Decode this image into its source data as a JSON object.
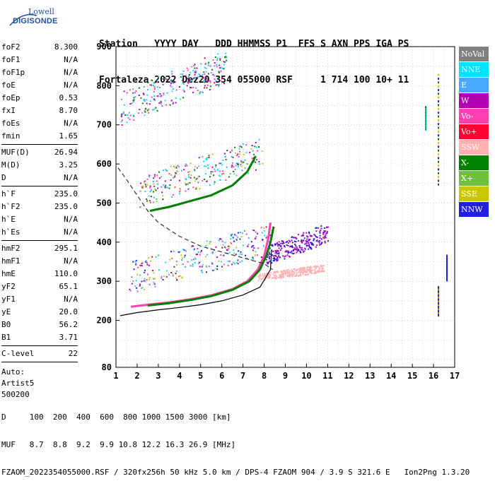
{
  "logo": {
    "line1": "Lowell",
    "line2": "DIGISONDE"
  },
  "header": {
    "labels": "Station   YYYY DAY   DDD HHMMSS P1  FFS S AXN PPS IGA PS",
    "values": "Fortaleza 2022 Dez20 354 055000 RSF     1 714 100 10+ 11"
  },
  "params": {
    "group1": [
      {
        "name": "foF2",
        "value": "8.300"
      },
      {
        "name": "foF1",
        "value": "N/A"
      },
      {
        "name": "foF1p",
        "value": "N/A"
      },
      {
        "name": "foE",
        "value": "N/A"
      },
      {
        "name": "foEp",
        "value": "0.53"
      },
      {
        "name": "fxI",
        "value": "8.70"
      },
      {
        "name": "foEs",
        "value": "N/A"
      },
      {
        "name": "fmin",
        "value": "1.65"
      }
    ],
    "group2": [
      {
        "name": "MUF(D)",
        "value": "26.94"
      },
      {
        "name": "M(D)",
        "value": "3.25"
      },
      {
        "name": "D",
        "value": "N/A"
      }
    ],
    "group3": [
      {
        "name": "h`F",
        "value": "235.0"
      },
      {
        "name": "h`F2",
        "value": "235.0"
      },
      {
        "name": "h`E",
        "value": "N/A"
      },
      {
        "name": "h`Es",
        "value": "N/A"
      }
    ],
    "group4": [
      {
        "name": "hmF2",
        "value": "295.1"
      },
      {
        "name": "hmF1",
        "value": "N/A"
      },
      {
        "name": "hmE",
        "value": "110.0"
      },
      {
        "name": "yF2",
        "value": "65.1"
      },
      {
        "name": "yF1",
        "value": "N/A"
      },
      {
        "name": "yE",
        "value": "20.0"
      },
      {
        "name": "B0",
        "value": "56.2"
      },
      {
        "name": "B1",
        "value": "3.71"
      }
    ],
    "group5": [
      {
        "name": "C-level",
        "value": "22"
      }
    ],
    "auto": [
      "Auto:",
      "Artist5",
      "500200"
    ]
  },
  "legend": [
    {
      "label": "NoVal",
      "color": "#808080"
    },
    {
      "label": "NNE",
      "color": "#00e5ff"
    },
    {
      "label": "E",
      "color": "#4aa8ff"
    },
    {
      "label": "W",
      "color": "#b400b4"
    },
    {
      "label": "Vo-",
      "color": "#ff40b0"
    },
    {
      "label": "Vo+",
      "color": "#ff0030"
    },
    {
      "label": "SSW",
      "color": "#ffb0b0"
    },
    {
      "label": "X-",
      "color": "#008000"
    },
    {
      "label": "X+",
      "color": "#70c040"
    },
    {
      "label": "SSE",
      "color": "#c8c800"
    },
    {
      "label": "NNW",
      "color": "#2020e0"
    }
  ],
  "chart_data": {
    "type": "scatter",
    "title": "",
    "xlabel": "",
    "ylabel": "",
    "xlim": [
      1,
      17
    ],
    "ylim": [
      80,
      900
    ],
    "x_ticks": [
      1,
      2,
      3,
      4,
      5,
      6,
      7,
      8,
      9,
      10,
      11,
      12,
      13,
      14,
      15,
      16,
      17
    ],
    "y_ticks": [
      80,
      200,
      300,
      400,
      500,
      600,
      700,
      800,
      900
    ],
    "grid": true,
    "traces": [
      {
        "name": "O-mode trace",
        "color": "#ff40b0",
        "points": [
          [
            1.7,
            235
          ],
          [
            2.5,
            240
          ],
          [
            3.5,
            246
          ],
          [
            4.5,
            254
          ],
          [
            5.5,
            264
          ],
          [
            6.5,
            280
          ],
          [
            7.2,
            300
          ],
          [
            7.7,
            330
          ],
          [
            8.0,
            365
          ],
          [
            8.2,
            410
          ],
          [
            8.3,
            450
          ]
        ]
      },
      {
        "name": "X-mode trace",
        "color": "#008000",
        "points": [
          [
            2.5,
            238
          ],
          [
            3.5,
            244
          ],
          [
            4.5,
            252
          ],
          [
            5.5,
            262
          ],
          [
            6.5,
            278
          ],
          [
            7.3,
            300
          ],
          [
            7.8,
            330
          ],
          [
            8.1,
            365
          ],
          [
            8.3,
            400
          ],
          [
            8.45,
            440
          ]
        ]
      },
      {
        "name": "multiple reflection 2",
        "color": "#008000",
        "points": [
          [
            2.6,
            480
          ],
          [
            3.5,
            490
          ],
          [
            4.5,
            505
          ],
          [
            5.5,
            520
          ],
          [
            6.5,
            545
          ],
          [
            7.2,
            580
          ],
          [
            7.6,
            620
          ]
        ]
      },
      {
        "name": "profile solid",
        "color": "#000000",
        "points": [
          [
            1.2,
            212
          ],
          [
            2,
            220
          ],
          [
            3,
            227
          ],
          [
            4,
            233
          ],
          [
            5,
            240
          ],
          [
            6,
            250
          ],
          [
            7,
            265
          ],
          [
            7.8,
            285
          ],
          [
            8.3,
            330
          ],
          [
            8.35,
            380
          ]
        ]
      },
      {
        "name": "profile dashed",
        "color": "#303030",
        "points": [
          [
            1.1,
            590
          ],
          [
            1.5,
            560
          ],
          [
            2,
            520
          ],
          [
            2.5,
            480
          ],
          [
            3,
            450
          ],
          [
            4,
            415
          ],
          [
            5,
            390
          ],
          [
            6,
            375
          ],
          [
            7,
            360
          ],
          [
            8,
            345
          ],
          [
            8.4,
            330
          ]
        ]
      }
    ],
    "clouds": [
      {
        "name": "multiple reflection 3",
        "colors": [
          "#ff40b0",
          "#4aa8ff",
          "#b400b4",
          "#008000",
          "#00e5ff"
        ],
        "x": [
          1.2,
          6.2
        ],
        "y": [
          700,
          895
        ]
      },
      {
        "name": "multiple reflection 2 spread",
        "colors": [
          "#ff40b0",
          "#4aa8ff",
          "#b400b4",
          "#00e5ff",
          "#c8c800",
          "#008000"
        ],
        "x": [
          2.1,
          7.9
        ],
        "y": [
          490,
          670
        ]
      },
      {
        "name": "F spread",
        "colors": [
          "#4aa8ff",
          "#ff40b0",
          "#b400b4",
          "#00e5ff",
          "#2020e0",
          "#c8c800"
        ],
        "x": [
          1.6,
          8.3
        ],
        "y": [
          270,
          450
        ]
      },
      {
        "name": "SSW echoes",
        "colors": [
          "#ffb0b0"
        ],
        "x": [
          7.7,
          10.8
        ],
        "y": [
          300,
          345
        ]
      },
      {
        "name": "NNW echoes",
        "colors": [
          "#2020e0",
          "#b400b4"
        ],
        "x": [
          8.0,
          11.0
        ],
        "y": [
          340,
          450
        ]
      }
    ],
    "spikes": [
      {
        "x": 16.2,
        "y": [
          550,
          840
        ],
        "colors": [
          "#008000",
          "#2020e0",
          "#c8c800"
        ]
      },
      {
        "x": 16.2,
        "y": [
          215,
          290
        ],
        "colors": [
          "#008000",
          "#2020e0",
          "#b400b4",
          "#c8c800"
        ]
      },
      {
        "x": 15.6,
        "y": [
          690,
          750
        ],
        "colors": [
          "#00e5ff",
          "#008000"
        ]
      },
      {
        "x": 16.6,
        "y": [
          305,
          370
        ],
        "colors": [
          "#2020e0"
        ]
      }
    ]
  },
  "footer": {
    "row_d": "D     100  200  400  600  800 1000 1500 3000 [km]",
    "row_muf": "MUF   8.7  8.8  9.2  9.9 10.8 12.2 16.3 26.9 [MHz]",
    "file": "FZAOM_2022354055000.RSF / 320fx256h 50 kHz 5.0 km / DPS-4 FZAOM 904 / 3.9 S 321.6 E   Ion2Png 1.3.20"
  }
}
